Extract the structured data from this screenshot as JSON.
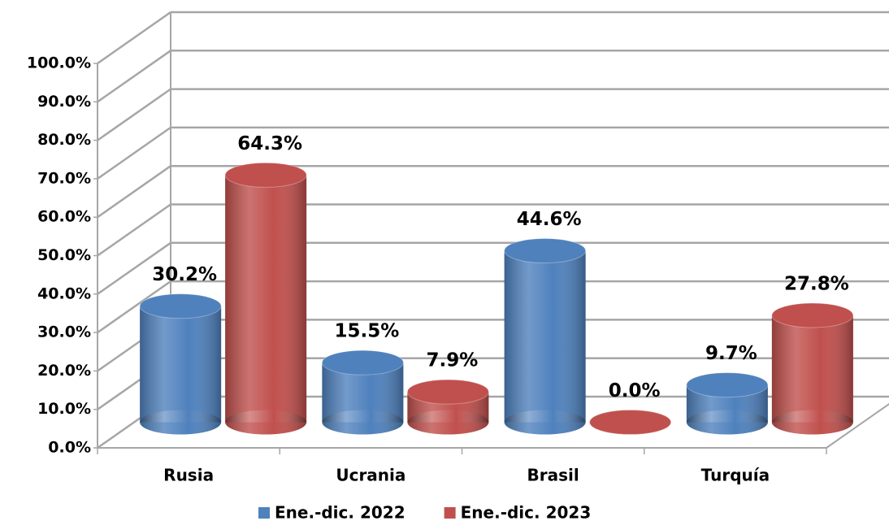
{
  "chart_data": {
    "type": "bar3d",
    "categories": [
      "Rusia",
      "Ucrania",
      "Brasil",
      "Turquía"
    ],
    "series": [
      {
        "name": "Ene.-dic. 2022",
        "color": "#4f81bd",
        "values": [
          30.2,
          15.5,
          44.6,
          9.7
        ],
        "value_labels": [
          "30.2%",
          "15.5%",
          "44.6%",
          "9.7%"
        ]
      },
      {
        "name": "Ene.-dic. 2023",
        "color": "#c0504d",
        "values": [
          64.3,
          7.9,
          0.0,
          27.8
        ],
        "value_labels": [
          "64.3%",
          "7.9%",
          "0.0%",
          "27.8%"
        ]
      }
    ],
    "ylim": [
      0,
      100
    ],
    "yticks": [
      {
        "value": 0,
        "label": "0.0%"
      },
      {
        "value": 10,
        "label": "10.0%"
      },
      {
        "value": 20,
        "label": "20.0%"
      },
      {
        "value": 30,
        "label": "30.0%"
      },
      {
        "value": 40,
        "label": "40.0%"
      },
      {
        "value": 50,
        "label": "50.0%"
      },
      {
        "value": 60,
        "label": "60.0%"
      },
      {
        "value": 70,
        "label": "70.0%"
      },
      {
        "value": 80,
        "label": "80.0%"
      },
      {
        "value": 90,
        "label": "90.0%"
      },
      {
        "value": 100,
        "label": "100.0%"
      }
    ],
    "grid": true,
    "legend": "bottom"
  }
}
